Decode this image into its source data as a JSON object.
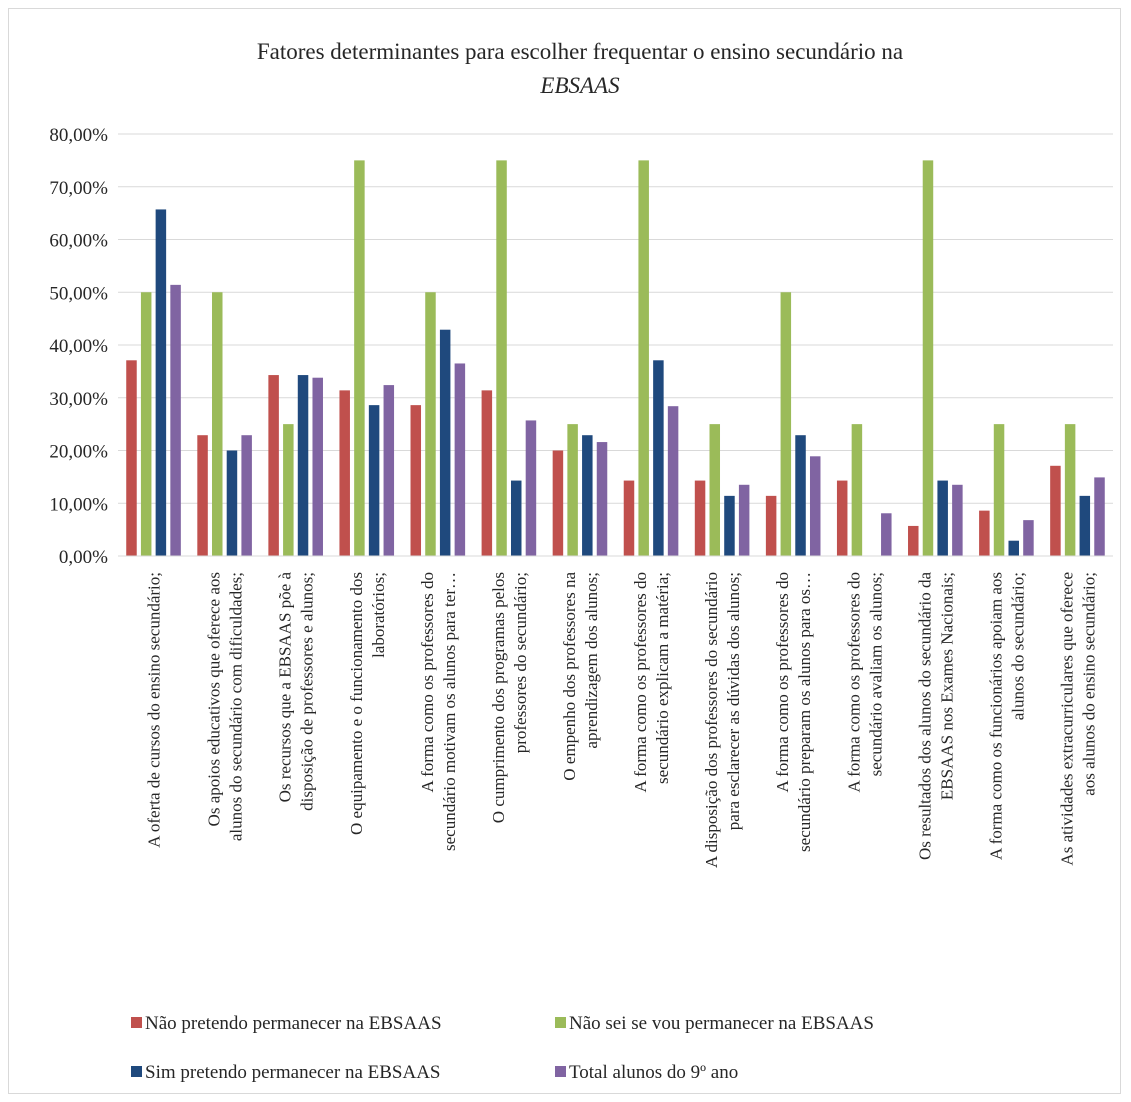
{
  "chart_data": {
    "type": "bar",
    "title": "Fatores determinantes para escolher frequentar o ensino secundário na",
    "title_line2": "EBSAAS",
    "ylim": [
      0,
      0.8
    ],
    "y_ticks": [
      "0,00%",
      "10,00%",
      "20,00%",
      "30,00%",
      "40,00%",
      "50,00%",
      "60,00%",
      "70,00%",
      "80,00%"
    ],
    "grid": true,
    "legend_position": "bottom",
    "categories": [
      [
        "A oferta de cursos do ensino secundário;"
      ],
      [
        "Os apoios educativos que oferece aos",
        "alunos do secundário com dificuldades;"
      ],
      [
        "Os recursos que a EBSAAS põe à",
        "disposição de professores e alunos;"
      ],
      [
        "O equipamento e o funcionamento dos",
        "laboratórios;"
      ],
      [
        "A forma como os professores do",
        "secundário motivam os alunos para ter…"
      ],
      [
        "O cumprimento dos programas pelos",
        "professores do secundário;"
      ],
      [
        "O empenho dos professores na",
        "aprendizagem dos alunos;"
      ],
      [
        "A forma como os professores do",
        "secundário explicam a matéria;"
      ],
      [
        "A disposição dos professores do secundário",
        "para esclarecer as dúvidas dos alunos;"
      ],
      [
        "A forma como os professores do",
        "secundário preparam os alunos para os…"
      ],
      [
        "A forma como os professores do",
        "secundário avaliam os alunos;"
      ],
      [
        "Os resultados dos alunos do secundário da",
        "EBSAAS nos Exames Nacionais;"
      ],
      [
        "A forma como os funcionários apoiam aos",
        "alunos do secundário;"
      ],
      [
        "As atividades extracurriculares que oferece",
        "aos alunos do ensino secundário;"
      ]
    ],
    "series": [
      {
        "name": "Não pretendo permanecer na EBSAAS",
        "color": "#c0504d",
        "values": [
          0.371,
          0.229,
          0.343,
          0.314,
          0.286,
          0.314,
          0.2,
          0.143,
          0.143,
          0.114,
          0.143,
          0.057,
          0.086,
          0.171
        ]
      },
      {
        "name": "Não sei se vou permanecer na EBSAAS",
        "color": "#9bbb59",
        "values": [
          0.5,
          0.5,
          0.25,
          0.75,
          0.5,
          0.75,
          0.25,
          0.75,
          0.25,
          0.5,
          0.25,
          0.75,
          0.25,
          0.25
        ]
      },
      {
        "name": "Sim pretendo permanecer na EBSAAS",
        "color": "#1f497d",
        "values": [
          0.657,
          0.2,
          0.343,
          0.286,
          0.429,
          0.143,
          0.229,
          0.371,
          0.114,
          0.229,
          0.0,
          0.143,
          0.029,
          0.114
        ]
      },
      {
        "name": "Total alunos do 9º ano",
        "color": "#8064a2",
        "values": [
          0.514,
          0.229,
          0.338,
          0.324,
          0.365,
          0.257,
          0.216,
          0.284,
          0.135,
          0.189,
          0.081,
          0.135,
          0.068,
          0.149
        ]
      }
    ]
  }
}
